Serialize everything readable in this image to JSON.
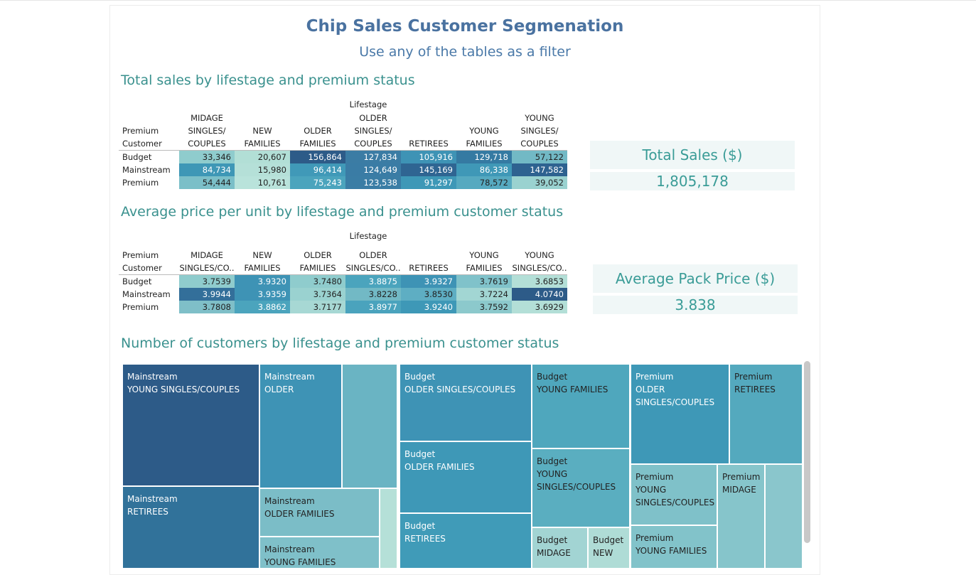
{
  "title": "Chip Sales Customer Segmenation",
  "subtitle": "Use any of the tables as a filter",
  "sales_table": {
    "heading": "Total sales by lifestage and premium status",
    "group_label": "Lifestage",
    "row_header": "Premium Customer",
    "columns": [
      "MIDAGE SINGLES/ COUPLES",
      "NEW FAMILIES",
      "OLDER FAMILIES",
      "OLDER SINGLES/ COUPLES",
      "RETIREES",
      "YOUNG FAMILIES",
      "YOUNG SINGLES/ COUPLES"
    ],
    "rows": [
      {
        "label": "Budget",
        "values": [
          "33,346",
          "20,607",
          "156,864",
          "127,834",
          "105,916",
          "129,718",
          "57,122"
        ],
        "colors": [
          "#8fcccd",
          "#b2dfd6",
          "#2d5b88",
          "#3b7ca4",
          "#3e93b5",
          "#357aa2",
          "#72b9c5"
        ],
        "dark_text": [
          true,
          true,
          false,
          false,
          false,
          false,
          true
        ]
      },
      {
        "label": "Mainstream",
        "values": [
          "84,734",
          "15,980",
          "96,414",
          "124,649",
          "145,169",
          "86,338",
          "147,582"
        ],
        "colors": [
          "#3e97b6",
          "#b5e0d8",
          "#4099b8",
          "#3a7ca5",
          "#2f6592",
          "#3f98b7",
          "#2e6290"
        ],
        "dark_text": [
          false,
          true,
          false,
          false,
          false,
          false,
          false
        ]
      },
      {
        "label": "Premium",
        "values": [
          "54,444",
          "10,761",
          "75,243",
          "123,538",
          "91,297",
          "78,572",
          "39,052"
        ],
        "colors": [
          "#7bbfc8",
          "#b9e3db",
          "#4ba4bd",
          "#3a7da5",
          "#3e98b7",
          "#56a9c0",
          "#9ad2d0"
        ],
        "dark_text": [
          true,
          true,
          false,
          false,
          false,
          true,
          true
        ]
      }
    ]
  },
  "price_table": {
    "heading": "Average price per unit by lifestage and premium customer status",
    "group_label": "Lifestage",
    "row_header": "Premium Customer",
    "columns": [
      "MIDAGE SINGLES/CO..",
      "NEW FAMILIES",
      "OLDER FAMILIES",
      "OLDER SINGLES/CO..",
      "RETIREES",
      "YOUNG FAMILIES",
      "YOUNG SINGLES/CO.."
    ],
    "rows": [
      {
        "label": "Budget",
        "values": [
          "3.7539",
          "3.9320",
          "3.7480",
          "3.8875",
          "3.9327",
          "3.7619",
          "3.6853"
        ],
        "colors": [
          "#8fcccd",
          "#3e93b5",
          "#8fcccd",
          "#4ba4bd",
          "#3e93b5",
          "#80c2ca",
          "#b3dfd7"
        ],
        "dark_text": [
          true,
          false,
          true,
          false,
          false,
          true,
          true
        ]
      },
      {
        "label": "Mainstream",
        "values": [
          "3.9944",
          "3.9359",
          "3.7364",
          "3.8228",
          "3.8530",
          "3.7224",
          "4.0740"
        ],
        "colors": [
          "#336f9a",
          "#3e93b5",
          "#9ad2d0",
          "#72b9c5",
          "#5eaec3",
          "#a2d6d3",
          "#2d5b88"
        ],
        "dark_text": [
          false,
          false,
          true,
          true,
          true,
          true,
          false
        ]
      },
      {
        "label": "Premium",
        "values": [
          "3.7808",
          "3.8862",
          "3.7177",
          "3.8977",
          "3.9240",
          "3.7592",
          "3.6929"
        ],
        "colors": [
          "#7fbfc8",
          "#4ba4bd",
          "#a7d8d4",
          "#4aa3bd",
          "#3e98b7",
          "#8cc9cc",
          "#b3dfd7"
        ],
        "dark_text": [
          true,
          false,
          true,
          false,
          false,
          true,
          true
        ]
      }
    ]
  },
  "kpis": {
    "total_sales_label": "Total Sales ($)",
    "total_sales_value": "1,805,178",
    "avg_price_label": "Average Pack Price ($)",
    "avg_price_value": "3.838"
  },
  "treemap": {
    "heading": "Number of customers by lifestage and premium customer status",
    "tiles": [
      {
        "segment": "Mainstream",
        "lifestage": "YOUNG SINGLES/COUPLES",
        "color": "#2d5b88"
      },
      {
        "segment": "Mainstream",
        "lifestage": "RETIREES",
        "color": "#31729a"
      },
      {
        "segment": "Mainstream",
        "lifestage": "OLDER",
        "color": "#3e93b5"
      },
      {
        "segment": "",
        "lifestage": "",
        "color": "#6ab4c3"
      },
      {
        "segment": "Mainstream",
        "lifestage": "OLDER FAMILIES",
        "color": "#7bbdc7",
        "dark": true
      },
      {
        "segment": "",
        "lifestage": "",
        "color": "#b5e0d8"
      },
      {
        "segment": "Mainstream",
        "lifestage": "YOUNG FAMILIES",
        "color": "#7fc0c9",
        "dark": true
      },
      {
        "segment": "Budget",
        "lifestage": "OLDER SINGLES/COUPLES",
        "color": "#3e93b5"
      },
      {
        "segment": "Budget",
        "lifestage": "OLDER FAMILIES",
        "color": "#3e98b7"
      },
      {
        "segment": "Budget",
        "lifestage": "RETIREES",
        "color": "#409bb8"
      },
      {
        "segment": "Budget",
        "lifestage": "YOUNG FAMILIES",
        "color": "#4fa7bd",
        "dark": true
      },
      {
        "segment": "Budget",
        "lifestage": "YOUNG SINGLES/COUPLES",
        "color": "#5aaec0",
        "dark": true
      },
      {
        "segment": "Budget",
        "lifestage": "MIDAGE",
        "color": "#a2d4d3",
        "dark": true
      },
      {
        "segment": "Budget",
        "lifestage": "NEW",
        "color": "#afdcd6",
        "dark": true
      },
      {
        "segment": "Premium",
        "lifestage": "OLDER SINGLES/COUPLES",
        "color": "#3e98b7"
      },
      {
        "segment": "Premium",
        "lifestage": "RETIREES",
        "color": "#54a9be",
        "dark": true
      },
      {
        "segment": "Premium",
        "lifestage": "YOUNG SINGLES/COUPLES",
        "color": "#7fc1c9",
        "dark": true
      },
      {
        "segment": "Premium",
        "lifestage": "MIDAGE",
        "color": "#86c5cb",
        "dark": true
      },
      {
        "segment": "",
        "lifestage": "",
        "color": "#8ac6cc"
      },
      {
        "segment": "Premium",
        "lifestage": "YOUNG FAMILIES",
        "color": "#82c3ca",
        "dark": true
      }
    ]
  }
}
